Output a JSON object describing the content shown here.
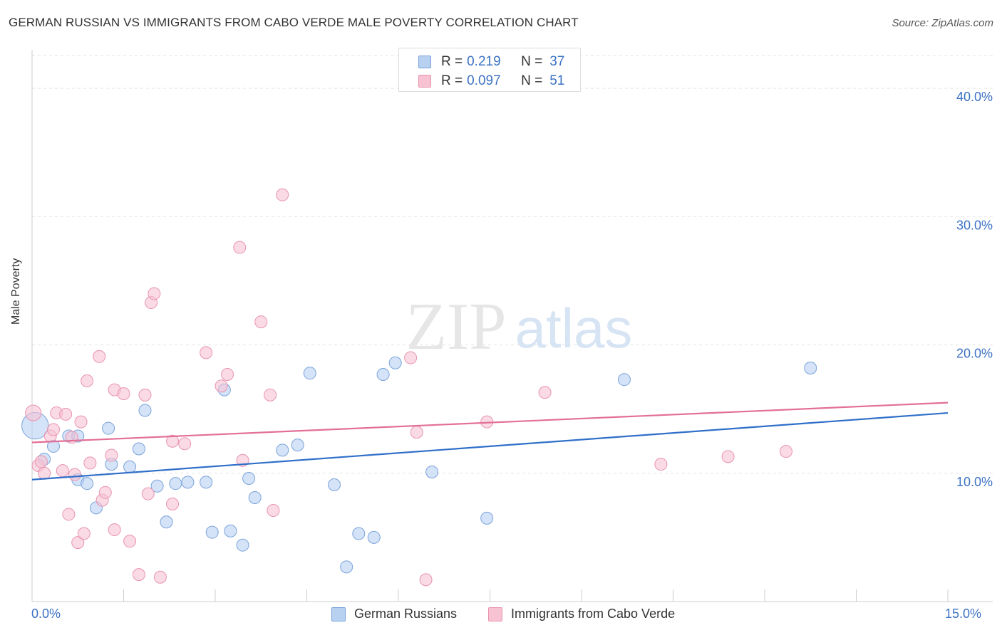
{
  "title": "GERMAN RUSSIAN VS IMMIGRANTS FROM CABO VERDE MALE POVERTY CORRELATION CHART",
  "source": "Source: ZipAtlas.com",
  "watermark": {
    "zip": "ZIP",
    "atlas": "atlas"
  },
  "legend_top": [
    {
      "r_label": "R =",
      "r_value": "0.219",
      "n_label": "N =",
      "n_value": "37"
    },
    {
      "r_label": "R =",
      "r_value": "0.097",
      "n_label": "N =",
      "n_value": "51"
    }
  ],
  "legend_bottom": [
    "German Russians",
    "Immigrants from Cabo Verde"
  ],
  "x_axis_labels": {
    "min": "0.0%",
    "max": "15.0%"
  },
  "colors": {
    "blue_fill": "#b8d1f1",
    "blue_stroke": "#7aa3db",
    "blue_line": "#2f6fc9",
    "pink_fill": "#f7c3d3",
    "pink_stroke": "#e893b0",
    "pink_line": "#e36f97",
    "axis_text": "#3c72c4"
  },
  "chart_data": {
    "type": "scatter",
    "title": "GERMAN RUSSIAN VS IMMIGRANTS FROM CABO VERDE MALE POVERTY CORRELATION CHART",
    "xlabel": "",
    "ylabel": "Male Poverty",
    "xlim": [
      0,
      15
    ],
    "ylim": [
      0,
      43
    ],
    "y_ticks": [
      10,
      20,
      30,
      40
    ],
    "y_tick_labels": [
      "10.0%",
      "20.0%",
      "30.0%",
      "40.0%"
    ],
    "series": [
      {
        "name": "German Russians",
        "r": 0.219,
        "n": 37,
        "trend": {
          "x": [
            0,
            15
          ],
          "y": [
            9.5,
            14.7
          ]
        },
        "points": [
          [
            0.05,
            13.7,
            2.2
          ],
          [
            0.2,
            11.1,
            1
          ],
          [
            0.35,
            12.1,
            1
          ],
          [
            0.6,
            12.9,
            1
          ],
          [
            0.75,
            9.5,
            1
          ],
          [
            0.9,
            9.2,
            1
          ],
          [
            1.05,
            7.3,
            1
          ],
          [
            1.25,
            13.5,
            1
          ],
          [
            1.3,
            10.7,
            1
          ],
          [
            1.6,
            10.5,
            1
          ],
          [
            1.75,
            11.9,
            1
          ],
          [
            1.85,
            14.9,
            1
          ],
          [
            2.05,
            9.0,
            1
          ],
          [
            2.2,
            6.2,
            1
          ],
          [
            2.35,
            9.2,
            1
          ],
          [
            2.55,
            9.3,
            1
          ],
          [
            2.85,
            9.3,
            1
          ],
          [
            2.95,
            5.4,
            1
          ],
          [
            3.15,
            16.5,
            1
          ],
          [
            3.25,
            5.5,
            1
          ],
          [
            3.45,
            4.4,
            1
          ],
          [
            3.55,
            9.6,
            1
          ],
          [
            3.65,
            8.1,
            1
          ],
          [
            4.1,
            11.8,
            1
          ],
          [
            4.35,
            12.2,
            1
          ],
          [
            4.55,
            17.8,
            1
          ],
          [
            4.95,
            9.1,
            1
          ],
          [
            5.15,
            2.7,
            1
          ],
          [
            5.35,
            5.3,
            1
          ],
          [
            5.6,
            5.0,
            1
          ],
          [
            5.75,
            17.7,
            1
          ],
          [
            5.95,
            18.6,
            1
          ],
          [
            6.55,
            10.1,
            1
          ],
          [
            7.45,
            6.5,
            1
          ],
          [
            9.7,
            17.3,
            1
          ],
          [
            12.75,
            18.2,
            1
          ],
          [
            0.75,
            12.9,
            1
          ]
        ]
      },
      {
        "name": "Immigrants from Cabo Verde",
        "r": 0.097,
        "n": 51,
        "trend": {
          "x": [
            0,
            15
          ],
          "y": [
            12.4,
            15.5
          ]
        },
        "points": [
          [
            0.02,
            14.7,
            1.3
          ],
          [
            0.1,
            10.6,
            1
          ],
          [
            0.15,
            10.9,
            1
          ],
          [
            0.2,
            10.0,
            1
          ],
          [
            0.3,
            12.9,
            1
          ],
          [
            0.35,
            13.4,
            1
          ],
          [
            0.4,
            14.7,
            1
          ],
          [
            0.5,
            10.2,
            1
          ],
          [
            0.55,
            14.6,
            1
          ],
          [
            0.6,
            6.8,
            1
          ],
          [
            0.65,
            12.8,
            1
          ],
          [
            0.7,
            9.9,
            1
          ],
          [
            0.75,
            4.6,
            1
          ],
          [
            0.8,
            14.0,
            1
          ],
          [
            0.85,
            5.3,
            1
          ],
          [
            0.9,
            17.2,
            1
          ],
          [
            0.95,
            10.8,
            1
          ],
          [
            1.1,
            19.1,
            1
          ],
          [
            1.15,
            7.9,
            1
          ],
          [
            1.2,
            8.5,
            1
          ],
          [
            1.3,
            11.4,
            1
          ],
          [
            1.35,
            16.5,
            1
          ],
          [
            1.35,
            5.6,
            1
          ],
          [
            1.5,
            16.2,
            1
          ],
          [
            1.6,
            4.7,
            1
          ],
          [
            1.75,
            2.1,
            1
          ],
          [
            1.85,
            16.1,
            1
          ],
          [
            1.9,
            8.4,
            1
          ],
          [
            1.95,
            23.3,
            1
          ],
          [
            2.0,
            24.0,
            1
          ],
          [
            2.1,
            1.9,
            1
          ],
          [
            2.3,
            7.6,
            1
          ],
          [
            2.3,
            12.5,
            1
          ],
          [
            2.5,
            12.3,
            1
          ],
          [
            2.85,
            19.4,
            1
          ],
          [
            3.1,
            16.8,
            1
          ],
          [
            3.2,
            17.7,
            1
          ],
          [
            3.4,
            27.6,
            1
          ],
          [
            3.45,
            11.0,
            1
          ],
          [
            3.75,
            21.8,
            1
          ],
          [
            3.9,
            16.1,
            1
          ],
          [
            3.95,
            7.1,
            1
          ],
          [
            4.1,
            31.7,
            1
          ],
          [
            6.2,
            19.0,
            1
          ],
          [
            6.3,
            13.2,
            1
          ],
          [
            6.45,
            1.7,
            1
          ],
          [
            7.45,
            14.0,
            1
          ],
          [
            8.4,
            16.3,
            1
          ],
          [
            10.3,
            10.7,
            1
          ],
          [
            11.4,
            11.3,
            1
          ],
          [
            12.35,
            11.7,
            1
          ]
        ]
      }
    ]
  }
}
